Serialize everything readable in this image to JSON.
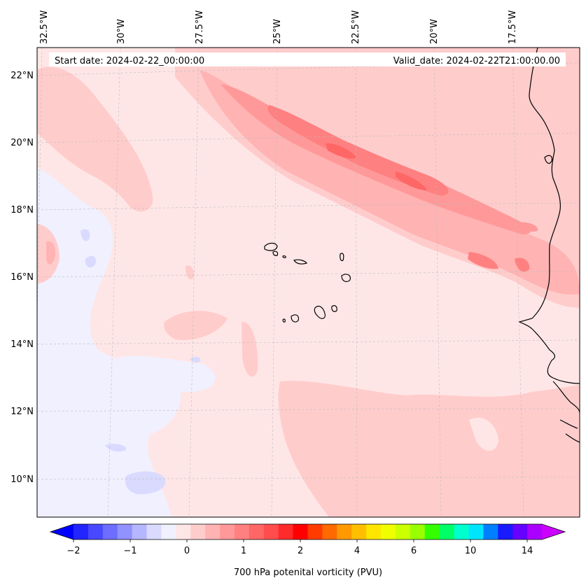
{
  "header": {
    "start_date": "Start date: 2024-02-22_00:00:00",
    "valid_date": "Valid_date: 2024-02-22T21:00:00.00"
  },
  "map": {
    "region": "Eastern North Atlantic / Cape Verde / West African coast",
    "lon_labels": [
      "32.5°W",
      "30°W",
      "27.5°W",
      "25°W",
      "22.5°W",
      "20°W",
      "17.5°W"
    ],
    "lat_labels": [
      "22°N",
      "20°N",
      "18°N",
      "16°N",
      "14°N",
      "12°N",
      "10°N"
    ],
    "gridlines": true,
    "coastlines": true
  },
  "colorbar": {
    "label": "700 hPa potenital vorticity (PVU)",
    "tick_labels": [
      "−2",
      "−1",
      "0",
      "1",
      "2",
      "4",
      "6",
      "10",
      "14"
    ],
    "extend": "both",
    "colors": [
      "#0000ff",
      "#2424ff",
      "#4848ff",
      "#6d6dff",
      "#9191ff",
      "#b6b6ff",
      "#dadaff",
      "#f0f0ff",
      "#ffe6e6",
      "#ffcccc",
      "#ffb3b3",
      "#ff9999",
      "#ff8080",
      "#ff6666",
      "#ff4d4d",
      "#ff2a2a",
      "#ff0000",
      "#ff3b00",
      "#ff6a00",
      "#ff9900",
      "#ffbf00",
      "#ffe500",
      "#f0ff00",
      "#ccff00",
      "#99ff00",
      "#33ff00",
      "#00ff66",
      "#00ffcc",
      "#00e5ff",
      "#0080ff",
      "#1a1aff",
      "#6600ff",
      "#aa00ff",
      "#cc00ff"
    ]
  }
}
